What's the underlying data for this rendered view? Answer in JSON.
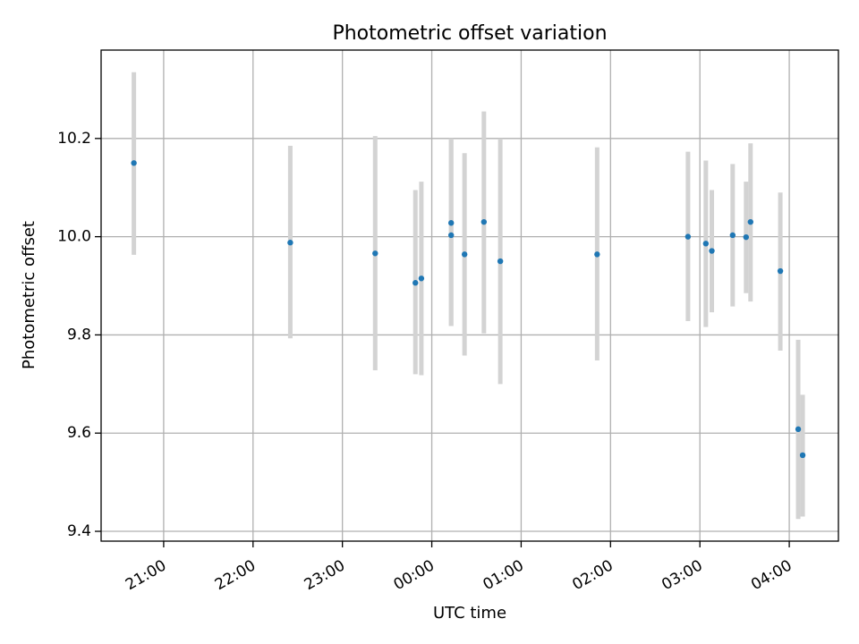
{
  "chart_data": {
    "type": "scatter",
    "title": "Photometric offset variation",
    "xlabel": "UTC time",
    "ylabel": "Photometric offset",
    "xlim": [
      "20:18",
      "04:33"
    ],
    "ylim": [
      9.38,
      10.38
    ],
    "grid": true,
    "legend": "none",
    "x_ticks": [
      "21:00",
      "22:00",
      "23:00",
      "00:00",
      "01:00",
      "02:00",
      "03:00",
      "04:00"
    ],
    "y_ticks": [
      9.4,
      9.6,
      9.8,
      10.0,
      10.2
    ],
    "point_color": "#1f77b4",
    "errorbar_color": "#d3d3d3",
    "points": [
      {
        "x": "20:40",
        "y": 10.15,
        "err_low": 9.963,
        "err_high": 10.335
      },
      {
        "x": "22:25",
        "y": 9.988,
        "err_low": 9.793,
        "err_high": 10.185
      },
      {
        "x": "23:22",
        "y": 9.966,
        "err_low": 9.728,
        "err_high": 10.205
      },
      {
        "x": "23:49",
        "y": 9.906,
        "err_low": 9.72,
        "err_high": 10.095
      },
      {
        "x": "23:53",
        "y": 9.915,
        "err_low": 9.718,
        "err_high": 10.112
      },
      {
        "x": "00:13",
        "y": 10.028,
        "err_low": 9.818,
        "err_high": 10.2
      },
      {
        "x": "00:13",
        "y": 10.003,
        "err_low": 9.818,
        "err_high": 10.2
      },
      {
        "x": "00:22",
        "y": 9.964,
        "err_low": 9.758,
        "err_high": 10.17
      },
      {
        "x": "00:35",
        "y": 10.03,
        "err_low": 9.803,
        "err_high": 10.255
      },
      {
        "x": "00:46",
        "y": 9.95,
        "err_low": 9.7,
        "err_high": 10.2
      },
      {
        "x": "01:51",
        "y": 9.964,
        "err_low": 9.748,
        "err_high": 10.182
      },
      {
        "x": "02:52",
        "y": 10.0,
        "err_low": 9.828,
        "err_high": 10.173
      },
      {
        "x": "03:04",
        "y": 9.986,
        "err_low": 9.816,
        "err_high": 10.155
      },
      {
        "x": "03:08",
        "y": 9.971,
        "err_low": 9.846,
        "err_high": 10.095
      },
      {
        "x": "03:22",
        "y": 10.003,
        "err_low": 9.858,
        "err_high": 10.148
      },
      {
        "x": "03:31",
        "y": 9.999,
        "err_low": 9.885,
        "err_high": 10.112
      },
      {
        "x": "03:34",
        "y": 10.03,
        "err_low": 9.868,
        "err_high": 10.19
      },
      {
        "x": "03:54",
        "y": 9.93,
        "err_low": 9.768,
        "err_high": 10.09
      },
      {
        "x": "04:06",
        "y": 9.608,
        "err_low": 9.425,
        "err_high": 9.79
      },
      {
        "x": "04:09",
        "y": 9.555,
        "err_low": 9.43,
        "err_high": 9.678
      }
    ]
  }
}
